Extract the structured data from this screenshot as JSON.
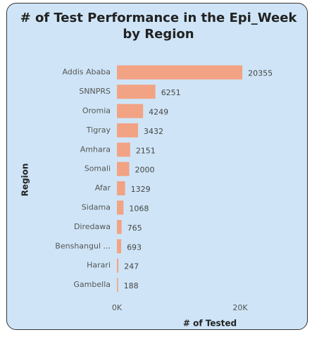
{
  "chart_data": {
    "type": "hbar",
    "title": "# of Test Performance in the Epi_Week by Region",
    "x_label": "# of Tested",
    "y_label": "Region",
    "categories": [
      "Addis Ababa",
      "SNNPRS",
      "Oromia",
      "Tigray",
      "Amhara",
      "Somali",
      "Afar",
      "Sidama",
      "Diredawa",
      "Benshangul ...",
      "Harari",
      "Gambella"
    ],
    "values": [
      20355,
      6251,
      4249,
      3432,
      2151,
      2000,
      1329,
      1068,
      765,
      693,
      247,
      188
    ],
    "color": "#f2a383",
    "xlim": [
      0,
      22000
    ],
    "xticks": [
      {
        "value": 0,
        "label": "0K"
      },
      {
        "value": 20000,
        "label": "20K"
      }
    ]
  }
}
